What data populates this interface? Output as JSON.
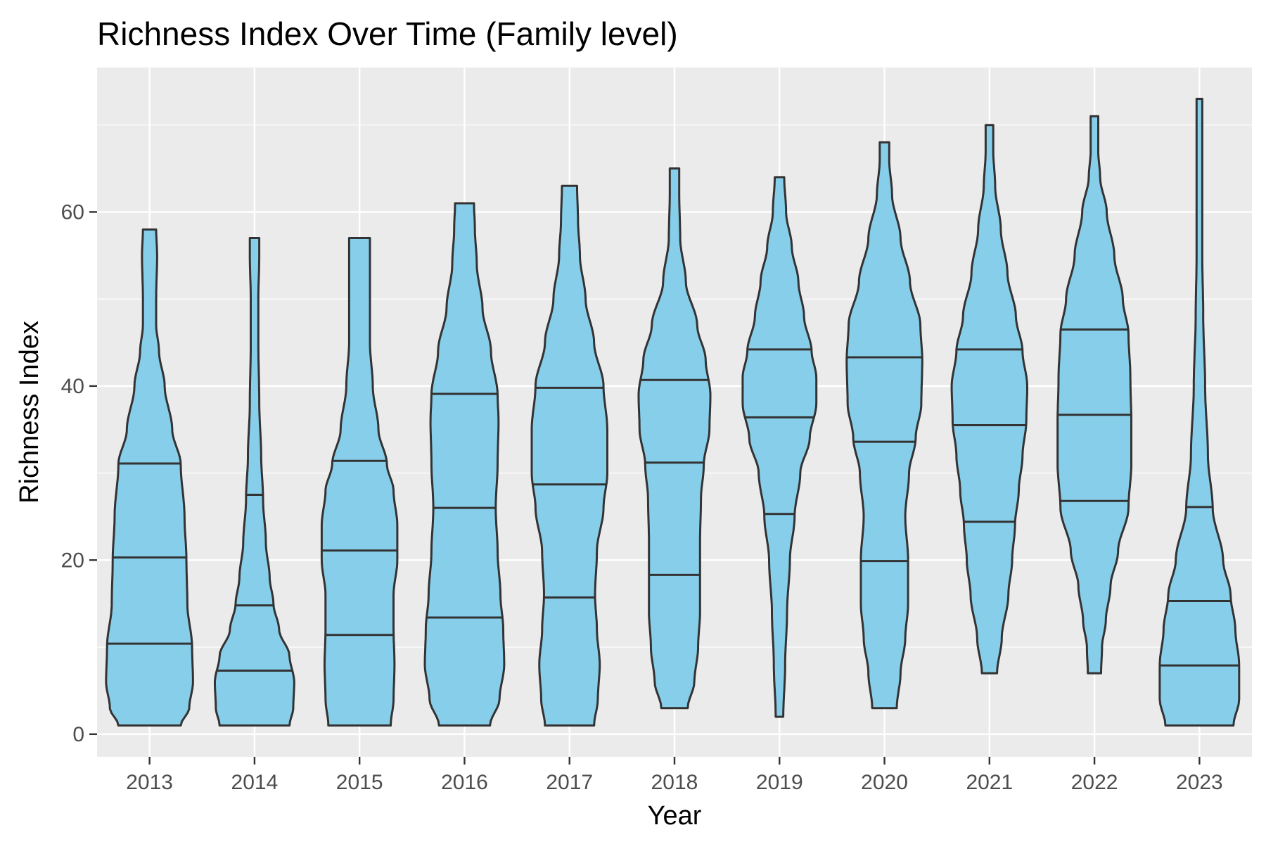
{
  "chart_data": {
    "type": "violin",
    "title": "Richness Index Over Time (Family level)",
    "xlabel": "Year",
    "ylabel": "Richness Index",
    "ylim": [
      -2.6,
      76.6
    ],
    "yticks": [
      0,
      20,
      40,
      60
    ],
    "grid": true,
    "colors": {
      "fill": "#87CEEB",
      "outline": "#333333",
      "panel": "#EBEBEB"
    },
    "categories": [
      "2013",
      "2014",
      "2015",
      "2016",
      "2017",
      "2018",
      "2019",
      "2020",
      "2021",
      "2022",
      "2023"
    ],
    "violins": [
      {
        "year": "2013",
        "min": 1,
        "max": 58,
        "quantiles": [
          10.4,
          20.3,
          31.1
        ],
        "profile": [
          [
            1,
            0.33
          ],
          [
            3,
            0.42
          ],
          [
            6,
            0.46
          ],
          [
            10,
            0.45
          ],
          [
            15,
            0.4
          ],
          [
            20,
            0.39
          ],
          [
            25,
            0.37
          ],
          [
            31,
            0.33
          ],
          [
            35,
            0.24
          ],
          [
            40,
            0.16
          ],
          [
            44,
            0.1
          ],
          [
            47,
            0.07
          ],
          [
            50,
            0.07
          ],
          [
            55,
            0.08
          ],
          [
            58,
            0.07
          ]
        ]
      },
      {
        "year": "2014",
        "min": 1,
        "max": 57,
        "quantiles": [
          7.3,
          14.8,
          27.5
        ],
        "profile": [
          [
            1,
            0.37
          ],
          [
            3,
            0.41
          ],
          [
            6,
            0.42
          ],
          [
            9,
            0.37
          ],
          [
            12,
            0.26
          ],
          [
            15,
            0.2
          ],
          [
            18,
            0.16
          ],
          [
            22,
            0.12
          ],
          [
            27,
            0.09
          ],
          [
            32,
            0.07
          ],
          [
            38,
            0.05
          ],
          [
            45,
            0.04
          ],
          [
            50,
            0.04
          ],
          [
            55,
            0.05
          ],
          [
            57,
            0.05
          ]
        ]
      },
      {
        "year": "2015",
        "min": 1,
        "max": 57,
        "quantiles": [
          11.4,
          21.1,
          31.4
        ],
        "profile": [
          [
            1,
            0.33
          ],
          [
            4,
            0.36
          ],
          [
            8,
            0.37
          ],
          [
            12,
            0.36
          ],
          [
            16,
            0.36
          ],
          [
            20,
            0.4
          ],
          [
            24,
            0.4
          ],
          [
            28,
            0.36
          ],
          [
            31,
            0.29
          ],
          [
            35,
            0.2
          ],
          [
            40,
            0.14
          ],
          [
            45,
            0.11
          ],
          [
            50,
            0.11
          ],
          [
            54,
            0.11
          ],
          [
            57,
            0.11
          ]
        ]
      },
      {
        "year": "2016",
        "min": 1,
        "max": 61,
        "quantiles": [
          13.4,
          26.0,
          39.1
        ],
        "profile": [
          [
            1,
            0.27
          ],
          [
            4,
            0.37
          ],
          [
            8,
            0.42
          ],
          [
            12,
            0.41
          ],
          [
            16,
            0.38
          ],
          [
            21,
            0.35
          ],
          [
            26,
            0.33
          ],
          [
            31,
            0.35
          ],
          [
            36,
            0.36
          ],
          [
            39,
            0.35
          ],
          [
            44,
            0.28
          ],
          [
            49,
            0.19
          ],
          [
            54,
            0.13
          ],
          [
            58,
            0.11
          ],
          [
            61,
            0.1
          ]
        ]
      },
      {
        "year": "2017",
        "min": 1,
        "max": 63,
        "quantiles": [
          15.7,
          28.7,
          39.8
        ],
        "profile": [
          [
            1,
            0.26
          ],
          [
            4,
            0.3
          ],
          [
            8,
            0.32
          ],
          [
            12,
            0.29
          ],
          [
            16,
            0.27
          ],
          [
            21,
            0.29
          ],
          [
            26,
            0.36
          ],
          [
            30,
            0.4
          ],
          [
            35,
            0.4
          ],
          [
            40,
            0.36
          ],
          [
            45,
            0.26
          ],
          [
            50,
            0.17
          ],
          [
            55,
            0.11
          ],
          [
            59,
            0.09
          ],
          [
            63,
            0.08
          ]
        ]
      },
      {
        "year": "2018",
        "min": 3,
        "max": 65,
        "quantiles": [
          18.3,
          31.2,
          40.7
        ],
        "profile": [
          [
            3,
            0.14
          ],
          [
            6,
            0.21
          ],
          [
            10,
            0.25
          ],
          [
            14,
            0.27
          ],
          [
            18,
            0.27
          ],
          [
            22,
            0.27
          ],
          [
            27,
            0.28
          ],
          [
            31,
            0.31
          ],
          [
            35,
            0.37
          ],
          [
            39,
            0.38
          ],
          [
            43,
            0.33
          ],
          [
            47,
            0.24
          ],
          [
            52,
            0.12
          ],
          [
            57,
            0.06
          ],
          [
            62,
            0.05
          ],
          [
            65,
            0.05
          ]
        ]
      },
      {
        "year": "2019",
        "min": 2,
        "max": 64,
        "quantiles": [
          25.3,
          36.4,
          44.2
        ],
        "profile": [
          [
            2,
            0.04
          ],
          [
            8,
            0.06
          ],
          [
            14,
            0.08
          ],
          [
            20,
            0.11
          ],
          [
            25,
            0.16
          ],
          [
            30,
            0.22
          ],
          [
            34,
            0.32
          ],
          [
            38,
            0.39
          ],
          [
            41,
            0.39
          ],
          [
            44,
            0.34
          ],
          [
            48,
            0.26
          ],
          [
            52,
            0.2
          ],
          [
            56,
            0.13
          ],
          [
            60,
            0.07
          ],
          [
            64,
            0.05
          ]
        ]
      },
      {
        "year": "2020",
        "min": 3,
        "max": 68,
        "quantiles": [
          19.9,
          33.6,
          43.3
        ],
        "profile": [
          [
            3,
            0.13
          ],
          [
            7,
            0.17
          ],
          [
            11,
            0.22
          ],
          [
            15,
            0.25
          ],
          [
            20,
            0.25
          ],
          [
            25,
            0.22
          ],
          [
            30,
            0.26
          ],
          [
            34,
            0.33
          ],
          [
            38,
            0.39
          ],
          [
            43,
            0.4
          ],
          [
            47,
            0.38
          ],
          [
            52,
            0.27
          ],
          [
            57,
            0.17
          ],
          [
            62,
            0.08
          ],
          [
            66,
            0.05
          ],
          [
            68,
            0.05
          ]
        ]
      },
      {
        "year": "2021",
        "min": 7,
        "max": 70,
        "quantiles": [
          24.4,
          35.5,
          44.2
        ],
        "profile": [
          [
            7,
            0.08
          ],
          [
            11,
            0.13
          ],
          [
            16,
            0.2
          ],
          [
            20,
            0.24
          ],
          [
            24,
            0.27
          ],
          [
            28,
            0.31
          ],
          [
            32,
            0.35
          ],
          [
            36,
            0.39
          ],
          [
            40,
            0.4
          ],
          [
            44,
            0.35
          ],
          [
            48,
            0.28
          ],
          [
            53,
            0.19
          ],
          [
            58,
            0.12
          ],
          [
            63,
            0.06
          ],
          [
            67,
            0.04
          ],
          [
            70,
            0.04
          ]
        ]
      },
      {
        "year": "2022",
        "min": 7,
        "max": 71,
        "quantiles": [
          26.8,
          36.7,
          46.5
        ],
        "profile": [
          [
            7,
            0.07
          ],
          [
            10,
            0.08
          ],
          [
            13,
            0.12
          ],
          [
            17,
            0.17
          ],
          [
            21,
            0.25
          ],
          [
            26,
            0.36
          ],
          [
            31,
            0.39
          ],
          [
            36,
            0.39
          ],
          [
            41,
            0.38
          ],
          [
            46,
            0.36
          ],
          [
            50,
            0.3
          ],
          [
            55,
            0.21
          ],
          [
            60,
            0.13
          ],
          [
            64,
            0.06
          ],
          [
            67,
            0.04
          ],
          [
            71,
            0.04
          ]
        ]
      },
      {
        "year": "2023",
        "min": 1,
        "max": 73,
        "quantiles": [
          7.9,
          15.3,
          26.1
        ],
        "profile": [
          [
            1,
            0.36
          ],
          [
            4,
            0.42
          ],
          [
            8,
            0.42
          ],
          [
            12,
            0.38
          ],
          [
            16,
            0.33
          ],
          [
            20,
            0.25
          ],
          [
            26,
            0.14
          ],
          [
            32,
            0.09
          ],
          [
            40,
            0.06
          ],
          [
            48,
            0.04
          ],
          [
            55,
            0.03
          ],
          [
            62,
            0.03
          ],
          [
            68,
            0.03
          ],
          [
            73,
            0.03
          ]
        ]
      }
    ]
  }
}
